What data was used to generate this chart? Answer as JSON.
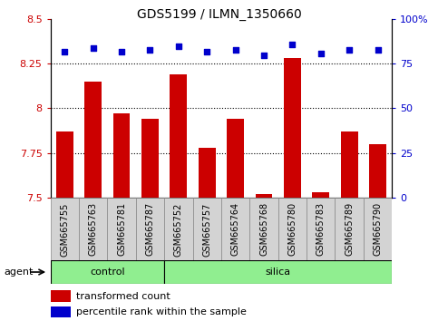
{
  "title": "GDS5199 / ILMN_1350660",
  "samples": [
    "GSM665755",
    "GSM665763",
    "GSM665781",
    "GSM665787",
    "GSM665752",
    "GSM665757",
    "GSM665764",
    "GSM665768",
    "GSM665780",
    "GSM665783",
    "GSM665789",
    "GSM665790"
  ],
  "bar_values": [
    7.87,
    8.15,
    7.97,
    7.94,
    8.19,
    7.78,
    7.94,
    7.52,
    8.28,
    7.53,
    7.87,
    7.8
  ],
  "dot_values": [
    82,
    84,
    82,
    83,
    85,
    82,
    83,
    80,
    86,
    81,
    83,
    83
  ],
  "ylim_left": [
    7.5,
    8.5
  ],
  "ylim_right": [
    0,
    100
  ],
  "yticks_left": [
    7.5,
    7.75,
    8.0,
    8.25,
    8.5
  ],
  "yticks_right": [
    0,
    25,
    50,
    75,
    100
  ],
  "ytick_labels_left": [
    "7.5",
    "7.75",
    "8",
    "8.25",
    "8.5"
  ],
  "ytick_labels_right": [
    "0",
    "25",
    "50",
    "75",
    "100%"
  ],
  "hlines": [
    7.75,
    8.0,
    8.25
  ],
  "bar_color": "#cc0000",
  "dot_color": "#0000cc",
  "bar_bottom": 7.5,
  "bar_width": 0.6,
  "ctrl_count": 4,
  "sil_count": 8,
  "group_labels": [
    "control",
    "silica"
  ],
  "group_color": "#90ee90",
  "agent_label": "agent",
  "legend_bar_label": "transformed count",
  "legend_dot_label": "percentile rank within the sample",
  "plot_bg_color": "#ffffff",
  "tick_label_color_left": "#cc0000",
  "tick_label_color_right": "#0000cc",
  "sample_box_color": "#d3d3d3",
  "title_fontsize": 10,
  "axis_fontsize": 8,
  "sample_fontsize": 7,
  "legend_fontsize": 8
}
